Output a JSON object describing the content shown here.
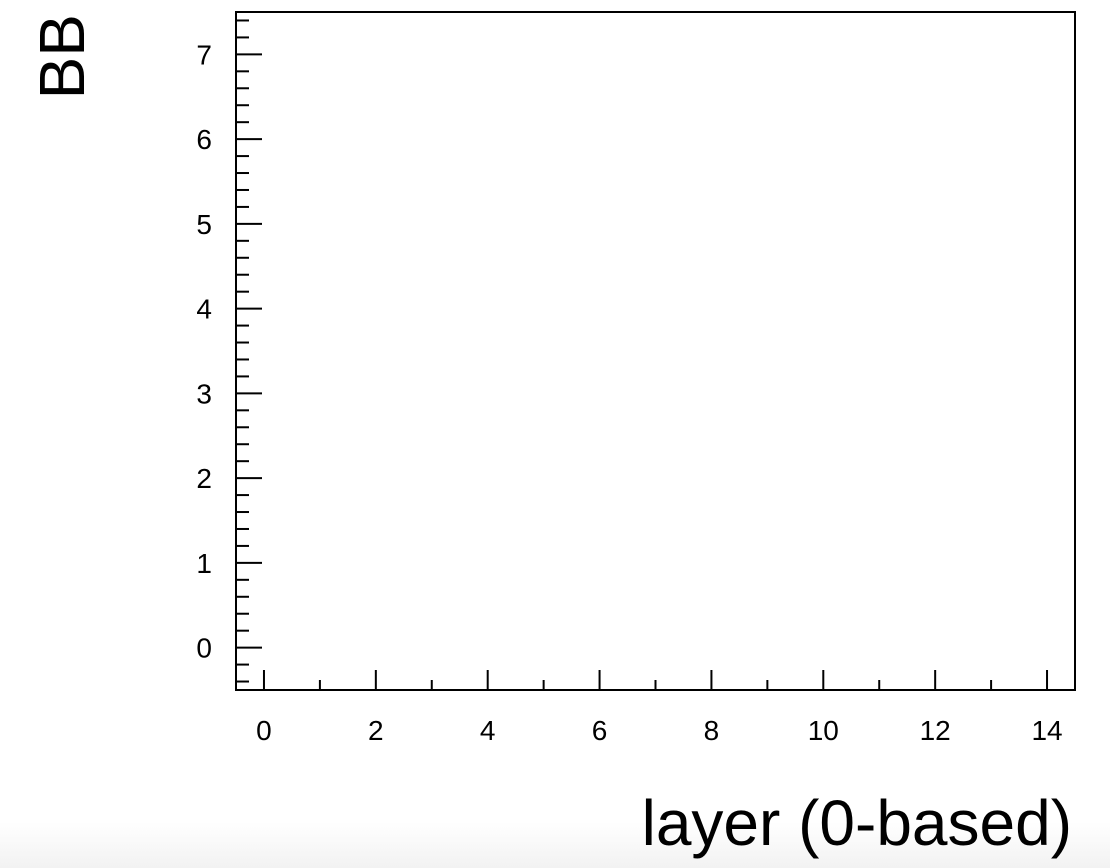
{
  "chart_data": {
    "type": "scatter",
    "title": "",
    "xlabel": "layer (0-based)",
    "ylabel": "BB",
    "xlim": [
      -0.5,
      14.5
    ],
    "ylim": [
      -0.5,
      7.5
    ],
    "x_ticks": [
      "0",
      "2",
      "4",
      "6",
      "8",
      "10",
      "12",
      "14"
    ],
    "y_ticks": [
      "0",
      "1",
      "2",
      "3",
      "4",
      "5",
      "6",
      "7"
    ],
    "series": [],
    "grid": false
  }
}
